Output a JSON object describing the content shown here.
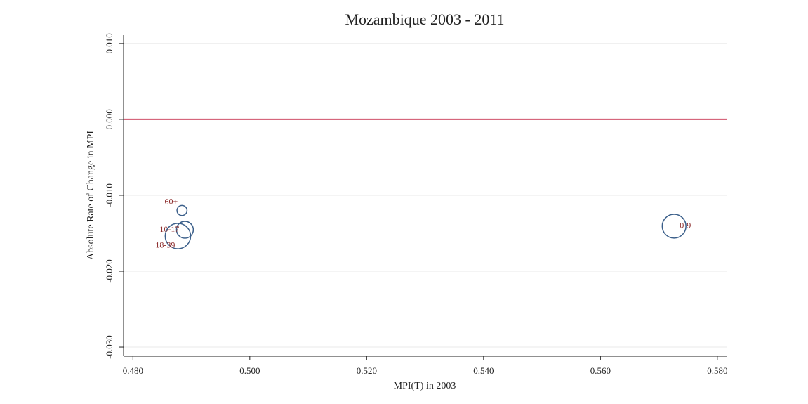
{
  "chart_data": {
    "type": "scatter",
    "title": "Mozambique 2003 - 2011",
    "x_label": "MPI(T) in 2003",
    "y_label": "Absolute Rate of Change in MPI",
    "point_labels": [
      "0-9",
      "10-17",
      "18-39",
      "60+"
    ],
    "x": [
      0.5726,
      0.4889,
      0.4877,
      0.4884
    ],
    "values": [
      -0.01407,
      -0.01454,
      -0.01537,
      -0.012
    ],
    "sizes": [
      28,
      14,
      32,
      5
    ],
    "color": "#3b5f8a",
    "label_color": "#8b2a2a",
    "reference_line": 0,
    "reference_color": "#d0506a",
    "xlim": [
      0.4784,
      0.5817
    ],
    "ylim": [
      -0.0312,
      0.0111
    ],
    "xticks": [
      {
        "value": 0.48,
        "label": "0.480"
      },
      {
        "value": 0.5,
        "label": "0.500"
      },
      {
        "value": 0.52,
        "label": "0.520"
      },
      {
        "value": 0.54,
        "label": "0.540"
      },
      {
        "value": 0.56,
        "label": "0.560"
      },
      {
        "value": 0.58,
        "label": "0.580"
      }
    ],
    "yticks": [
      {
        "value": -0.03,
        "label": "-0.030"
      },
      {
        "value": -0.02,
        "label": "-0.020"
      },
      {
        "value": -0.01,
        "label": "-0.010"
      },
      {
        "value": 0,
        "label": "0.000"
      },
      {
        "value": 0.01,
        "label": "0.010"
      }
    ],
    "grid": true
  }
}
